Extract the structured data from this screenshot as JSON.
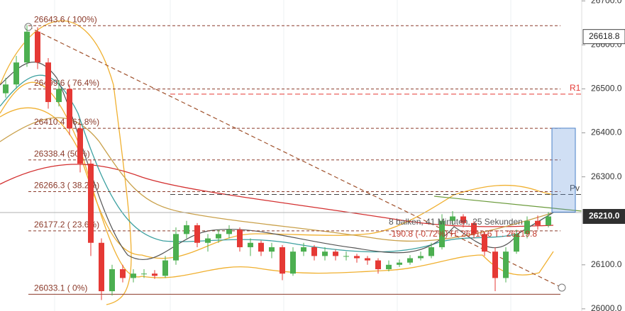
{
  "chart_data": {
    "type": "candlestick",
    "ylim": [
      25995,
      26702
    ],
    "yticks": [
      {
        "value": 26700,
        "label": "26700.0"
      },
      {
        "value": 26600,
        "label": "26600.0"
      },
      {
        "value": 26500,
        "label": "26500.0"
      },
      {
        "value": 26400,
        "label": "26400.0"
      },
      {
        "value": 26300,
        "label": "26300.0"
      },
      {
        "value": 26100,
        "label": "26100.0"
      },
      {
        "value": 26000,
        "label": "26000.0"
      }
    ],
    "candles": [
      [
        26490,
        26525,
        26480,
        26510
      ],
      [
        26510,
        26575,
        26500,
        26560
      ],
      [
        26560,
        26645,
        26550,
        26630
      ],
      [
        26630,
        26640,
        26545,
        26560
      ],
      [
        26560,
        26570,
        26455,
        26470
      ],
      [
        26470,
        26520,
        26460,
        26500
      ],
      [
        26500,
        26510,
        26395,
        26410
      ],
      [
        26410,
        26420,
        26310,
        26330
      ],
      [
        26330,
        26340,
        26120,
        26150
      ],
      [
        26150,
        26160,
        26020,
        26040
      ],
      [
        26040,
        26100,
        26030,
        26090
      ],
      [
        26090,
        26100,
        26060,
        26070
      ],
      [
        26070,
        26090,
        26060,
        26080
      ],
      [
        26080,
        26090,
        26070,
        26080
      ],
      [
        26080,
        26088,
        26068,
        26075
      ],
      [
        26075,
        26120,
        26070,
        26110
      ],
      [
        26110,
        26185,
        26100,
        26170
      ],
      [
        26170,
        26200,
        26160,
        26190
      ],
      [
        26190,
        26195,
        26140,
        26150
      ],
      [
        26150,
        26170,
        26130,
        26160
      ],
      [
        26160,
        26180,
        26150,
        26170
      ],
      [
        26170,
        26190,
        26160,
        26180
      ],
      [
        26180,
        26185,
        26130,
        26140
      ],
      [
        26140,
        26160,
        26120,
        26150
      ],
      [
        26150,
        26155,
        26120,
        26130
      ],
      [
        26130,
        26150,
        26115,
        26140
      ],
      [
        26140,
        26145,
        26065,
        26080
      ],
      [
        26080,
        26140,
        26075,
        26130
      ],
      [
        26130,
        26150,
        26120,
        26140
      ],
      [
        26140,
        26145,
        26110,
        26120
      ],
      [
        26120,
        26140,
        26110,
        26130
      ],
      [
        26130,
        26135,
        26110,
        26120
      ],
      [
        26120,
        26130,
        26110,
        26120
      ],
      [
        26120,
        26125,
        26105,
        26115
      ],
      [
        26115,
        26120,
        26100,
        26110
      ],
      [
        26110,
        26115,
        26080,
        26090
      ],
      [
        26090,
        26110,
        26085,
        26100
      ],
      [
        26100,
        26112,
        26095,
        26105
      ],
      [
        26105,
        26122,
        26100,
        26115
      ],
      [
        26115,
        26130,
        26110,
        26120
      ],
      [
        26120,
        26150,
        26115,
        26140
      ],
      [
        26140,
        26215,
        26135,
        26200
      ],
      [
        26200,
        26222,
        26190,
        26210
      ],
      [
        26210,
        26215,
        26185,
        26195
      ],
      [
        26195,
        26200,
        26160,
        26170
      ],
      [
        26170,
        26175,
        26120,
        26130
      ],
      [
        26130,
        26140,
        26040,
        26070
      ],
      [
        26070,
        26140,
        26060,
        26130
      ],
      [
        26130,
        26180,
        26125,
        26170
      ],
      [
        26170,
        26210,
        26160,
        26200
      ],
      [
        26200,
        26212,
        26180,
        26190
      ],
      [
        26190,
        26220,
        26185,
        26210
      ]
    ],
    "up_color": "#4caf50",
    "down_color": "#e53935",
    "fib_levels": [
      {
        "value": 26643.6,
        "label": "26643.6 ( 100%)"
      },
      {
        "value": 26499.6,
        "label": "26499.6 ( 76.4%)"
      },
      {
        "value": 26410.4,
        "label": "26410.4 ( 61.8%)"
      },
      {
        "value": 26338.4,
        "label": "26338.4 (50%)"
      },
      {
        "value": 26266.3,
        "label": "26266.3 ( 38.2%)"
      },
      {
        "value": 26177.2,
        "label": "26177.2 ( 23.6%)"
      },
      {
        "value": 26033.1,
        "label": "26033.1 ( 0%)"
      }
    ],
    "fib_color": "#8b3a2a",
    "pivots": [
      {
        "name": "R1",
        "value": 26488,
        "color": "#e53935"
      },
      {
        "name": "Pv",
        "value": 26260,
        "color": "#444444"
      }
    ],
    "price_markers": [
      {
        "value": 26618.8,
        "label": "26618.8",
        "style": "light"
      },
      {
        "value": 26210,
        "label": "26210.0",
        "style": "dark"
      }
    ],
    "measure": {
      "text1": "8 balken, 41 Minuten, 25 Sekunden",
      "text2": "-190.8 (-0.72%)  H: 26410.6 T : 26219.8",
      "high": 26410.6,
      "low": 26219.8
    }
  }
}
